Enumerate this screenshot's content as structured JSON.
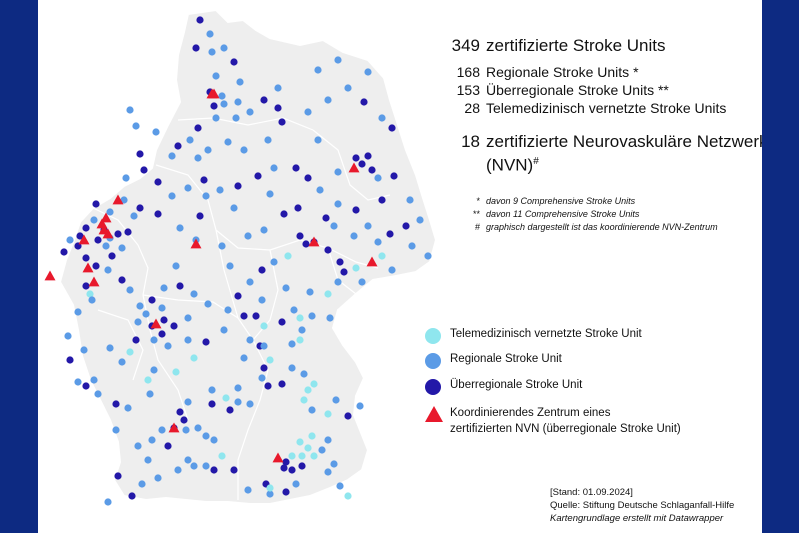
{
  "stats": {
    "total": {
      "num": "349",
      "label": "zertifizierte Stroke Units"
    },
    "regional": {
      "num": "168",
      "label": "Regionale Stroke Units *"
    },
    "ueberregional": {
      "num": "153",
      "label": "Überregionale Stroke Units **"
    },
    "tele": {
      "num": "28",
      "label": "Telemedizinisch vernetzte Stroke Units"
    },
    "nvn": {
      "num": "18",
      "label_line1": "zertifizierte Neurovaskuläre Netzwerke",
      "label_line2": "(NVN)",
      "label_sup": "#"
    }
  },
  "notes": [
    {
      "mark": "*",
      "text": "davon 9 Comprehensive Stroke Units"
    },
    {
      "mark": "**",
      "text": "davon 11 Comprehensive Stroke Units"
    },
    {
      "mark": "#",
      "text": "graphisch dargestellt ist das koordinierende NVN-Zentrum"
    }
  ],
  "legend": {
    "tele": "Telemedizinisch vernetzte Stroke Unit",
    "regional": "Regionale Stroke Unit",
    "ueberregional": "Überregionale Stroke Unit",
    "nvn_line1": "Koordinierendes Zentrum eines",
    "nvn_line2": "zertifizierten NVN (überregionale Stroke Unit)"
  },
  "source": {
    "line1": "[Stand:  01.09.2024]",
    "line2": "Quelle: Stiftung Deutsche Schlaganfall-Hilfe",
    "line3": "Kartengrundlage erstellt mit Datawrapper"
  },
  "colors": {
    "background": "#0d2a82",
    "map_fill": "#eeeeee",
    "border": "#ffffff",
    "tele": "#8fe6ee",
    "regional": "#5b9be6",
    "ueberregional": "#2318a8",
    "nvn": "#e8192c"
  }
}
